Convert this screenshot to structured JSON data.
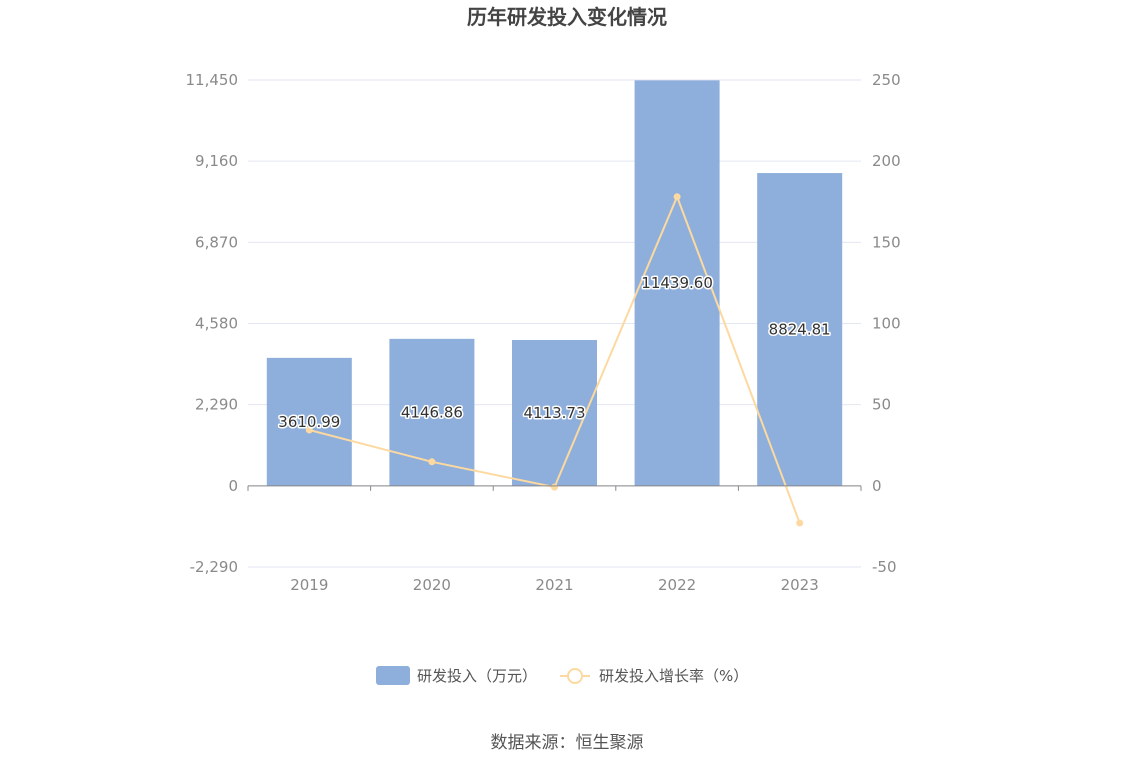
{
  "chart_data": {
    "type": "bar",
    "title": "历年研发投入变化情况",
    "categories": [
      "2019",
      "2020",
      "2021",
      "2022",
      "2023"
    ],
    "series": [
      {
        "name": "研发投入（万元）",
        "type": "bar",
        "axis": "left",
        "values": [
          3610.99,
          4146.86,
          4113.73,
          11439.6,
          8824.81
        ],
        "labels": [
          "3610.99",
          "4146.86",
          "4113.73",
          "11439.60",
          "8824.81"
        ],
        "color": "#8eaedb"
      },
      {
        "name": "研发投入增长率（%）",
        "type": "line",
        "axis": "right",
        "values": [
          34.4,
          14.8,
          -0.8,
          178.1,
          -22.9
        ],
        "color": "#fcd9a0"
      }
    ],
    "y_left": {
      "ylim": [
        -2290,
        11450
      ],
      "ticks": [
        "11,450",
        "9,160",
        "6,870",
        "4,580",
        "2,290",
        "0",
        "-2,290"
      ]
    },
    "y_right": {
      "ylim": [
        -50,
        250
      ],
      "ticks": [
        "250",
        "200",
        "150",
        "100",
        "50",
        "0",
        "-50"
      ]
    },
    "grid": true,
    "legend_position": "bottom-center"
  },
  "source": "数据来源：恒生聚源"
}
